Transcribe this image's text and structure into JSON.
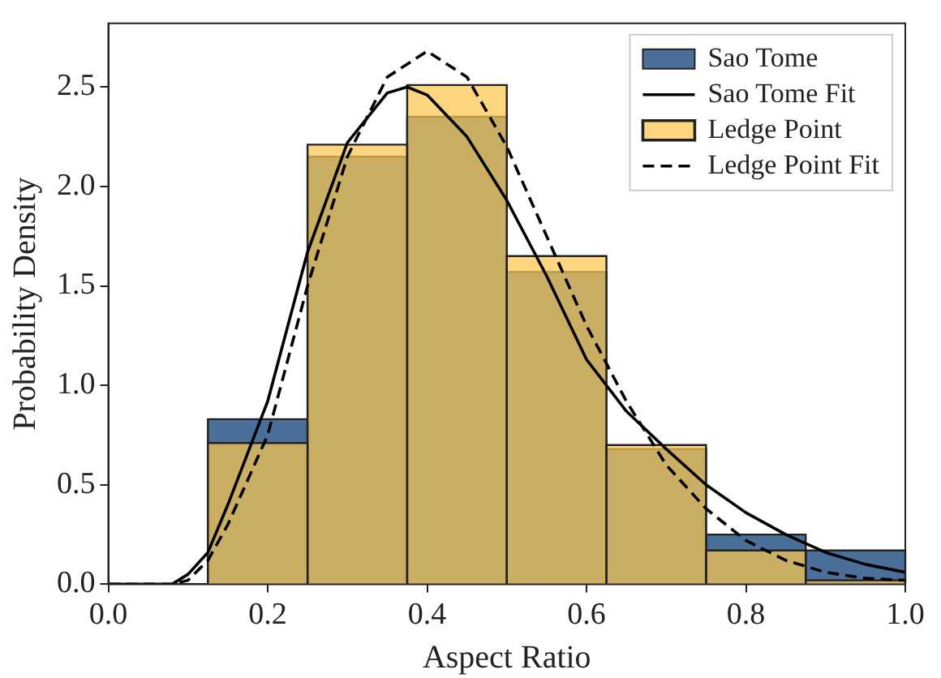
{
  "chart_data": {
    "type": "histogram",
    "xlabel": "Aspect Ratio",
    "ylabel": "Probability Density",
    "bins": [
      0.125,
      0.25,
      0.375,
      0.5,
      0.625,
      0.75,
      0.875,
      1.0
    ],
    "series": [
      {
        "name": "Sao Tome",
        "color": "#4a7099",
        "values": [
          0.83,
          2.15,
          2.35,
          1.57,
          0.68,
          0.25,
          0.17
        ]
      },
      {
        "name": "Sao Tome Fit",
        "type": "line",
        "color": "#000000",
        "line_style": "solid",
        "x": [
          0,
          0.05,
          0.08,
          0.1,
          0.125,
          0.15,
          0.2,
          0.25,
          0.3,
          0.35,
          0.375,
          0.4,
          0.45,
          0.5,
          0.55,
          0.6,
          0.65,
          0.7,
          0.75,
          0.8,
          0.85,
          0.9,
          0.95,
          1.0
        ],
        "values": [
          0,
          0,
          0,
          0.05,
          0.16,
          0.4,
          0.92,
          1.67,
          2.22,
          2.47,
          2.5,
          2.46,
          2.25,
          1.93,
          1.55,
          1.13,
          0.87,
          0.68,
          0.5,
          0.36,
          0.25,
          0.16,
          0.1,
          0.06
        ]
      },
      {
        "name": "Ledge Point",
        "color": "#fcc64e",
        "values": [
          0.71,
          2.21,
          2.51,
          1.65,
          0.7,
          0.17,
          0.02
        ]
      },
      {
        "name": "Ledge Point Fit",
        "type": "line",
        "color": "#000000",
        "line_style": "dashed",
        "x": [
          0,
          0.05,
          0.08,
          0.1,
          0.125,
          0.15,
          0.2,
          0.25,
          0.3,
          0.35,
          0.4,
          0.45,
          0.5,
          0.55,
          0.6,
          0.65,
          0.7,
          0.75,
          0.8,
          0.85,
          0.9,
          0.95,
          1.0
        ],
        "values": [
          0,
          0,
          0,
          0.02,
          0.12,
          0.3,
          0.75,
          1.5,
          2.15,
          2.55,
          2.68,
          2.55,
          2.2,
          1.75,
          1.3,
          0.92,
          0.6,
          0.38,
          0.22,
          0.12,
          0.06,
          0.03,
          0.02
        ]
      }
    ],
    "xlim": [
      0,
      1.0
    ],
    "ylim": [
      0,
      2.82
    ],
    "xticks": [
      {
        "value": 0,
        "label": "0.0"
      },
      0.2,
      0.4,
      0.6,
      0.8,
      {
        "value": 1,
        "label": "1.0"
      }
    ],
    "yticks": [
      {
        "value": 0,
        "label": "0.0"
      },
      0.5,
      {
        "value": 1,
        "label": "1.0"
      },
      1.5,
      {
        "value": 2,
        "label": "2.0"
      },
      2.5
    ],
    "grid": false,
    "legend": "top right"
  }
}
